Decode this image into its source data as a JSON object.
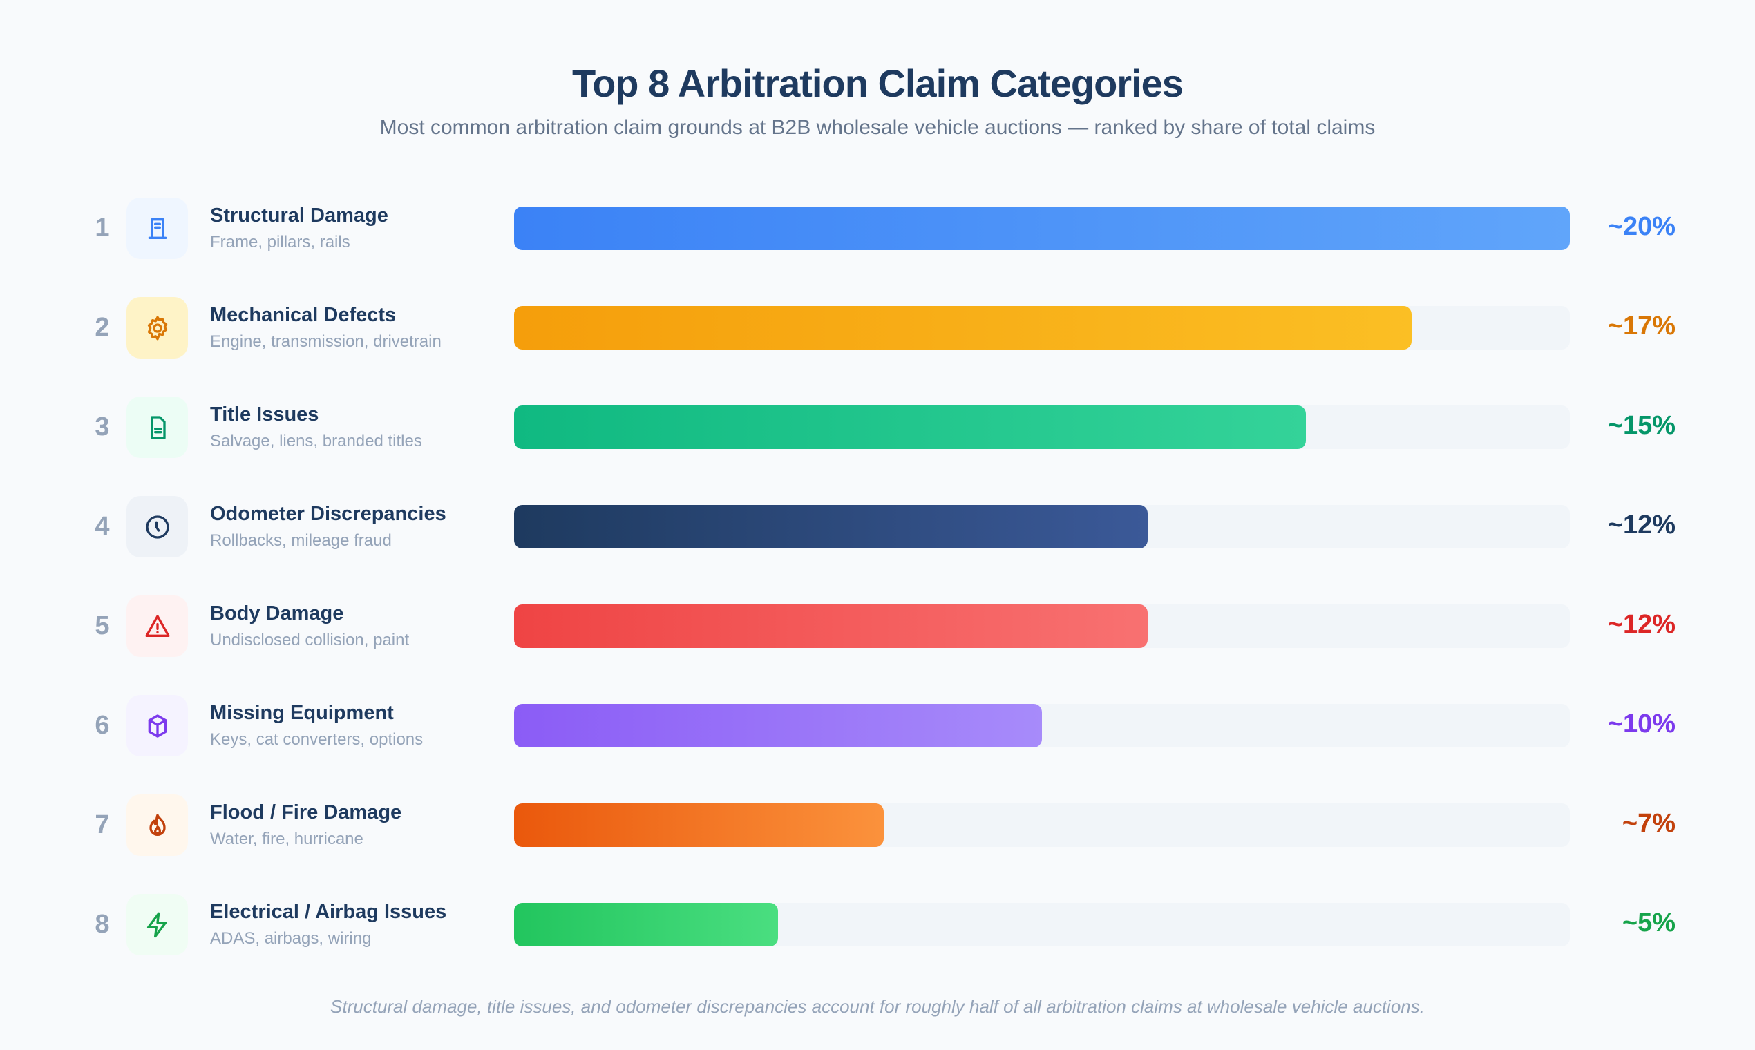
{
  "chart_data": {
    "type": "bar",
    "orientation": "horizontal",
    "title": "Top 8 Arbitration Claim Categories",
    "subtitle": "Most common arbitration claim grounds at B2B wholesale vehicle auctions — ranked by share of total claims",
    "xlim": [
      0,
      20
    ],
    "grid": false,
    "categories": [
      "Structural Damage",
      "Mechanical Defects",
      "Title Issues",
      "Odometer Discrepancies",
      "Body Damage",
      "Missing Equipment",
      "Flood / Fire Damage",
      "Electrical / Airbag Issues"
    ],
    "values": [
      20,
      17,
      15,
      12,
      12,
      10,
      7,
      5
    ],
    "items": [
      {
        "rank": "1",
        "label": "Structural Damage",
        "sub": "Frame, pillars, rails",
        "value": 20,
        "value_label": "~20%",
        "icon": "door-icon",
        "color_from": "#3b82f6",
        "color_to": "#60a5fa",
        "text_color": "#3b82f6",
        "icon_bg": "#eff6ff"
      },
      {
        "rank": "2",
        "label": "Mechanical Defects",
        "sub": "Engine, transmission, drivetrain",
        "value": 17,
        "value_label": "~17%",
        "icon": "gear-icon",
        "color_from": "#f59e0b",
        "color_to": "#fbbf24",
        "text_color": "#d97706",
        "icon_bg": "#fef3c7"
      },
      {
        "rank": "3",
        "label": "Title Issues",
        "sub": "Salvage, liens, branded titles",
        "value": 15,
        "value_label": "~15%",
        "icon": "document-icon",
        "color_from": "#10b981",
        "color_to": "#34d399",
        "text_color": "#059669",
        "icon_bg": "#ecfdf5"
      },
      {
        "rank": "4",
        "label": "Odometer Discrepancies",
        "sub": "Rollbacks, mileage fraud",
        "value": 12,
        "value_label": "~12%",
        "icon": "clock-icon",
        "color_from": "#1e3a5f",
        "color_to": "#3b5998",
        "text_color": "#1e3a5f",
        "icon_bg": "#eef2f7"
      },
      {
        "rank": "5",
        "label": "Body Damage",
        "sub": "Undisclosed collision, paint",
        "value": 12,
        "value_label": "~12%",
        "icon": "warning-icon",
        "color_from": "#ef4444",
        "color_to": "#f87171",
        "text_color": "#dc2626",
        "icon_bg": "#fef2f2"
      },
      {
        "rank": "6",
        "label": "Missing Equipment",
        "sub": "Keys, cat converters, options",
        "value": 10,
        "value_label": "~10%",
        "icon": "box-icon",
        "color_from": "#8b5cf6",
        "color_to": "#a78bfa",
        "text_color": "#7c3aed",
        "icon_bg": "#f5f3ff"
      },
      {
        "rank": "7",
        "label": "Flood / Fire Damage",
        "sub": "Water, fire, hurricane",
        "value": 7,
        "value_label": "~7%",
        "icon": "flame-icon",
        "color_from": "#ea580c",
        "color_to": "#fb923c",
        "text_color": "#c2410c",
        "icon_bg": "#fff7ed"
      },
      {
        "rank": "8",
        "label": "Electrical / Airbag Issues",
        "sub": "ADAS, airbags, wiring",
        "value": 5,
        "value_label": "~5%",
        "icon": "lightning-icon",
        "color_from": "#22c55e",
        "color_to": "#4ade80",
        "text_color": "#16a34a",
        "icon_bg": "#f0fdf4"
      }
    ],
    "footnote": "Structural damage, title issues, and odometer discrepancies account for roughly half of all arbitration claims at wholesale vehicle auctions."
  }
}
